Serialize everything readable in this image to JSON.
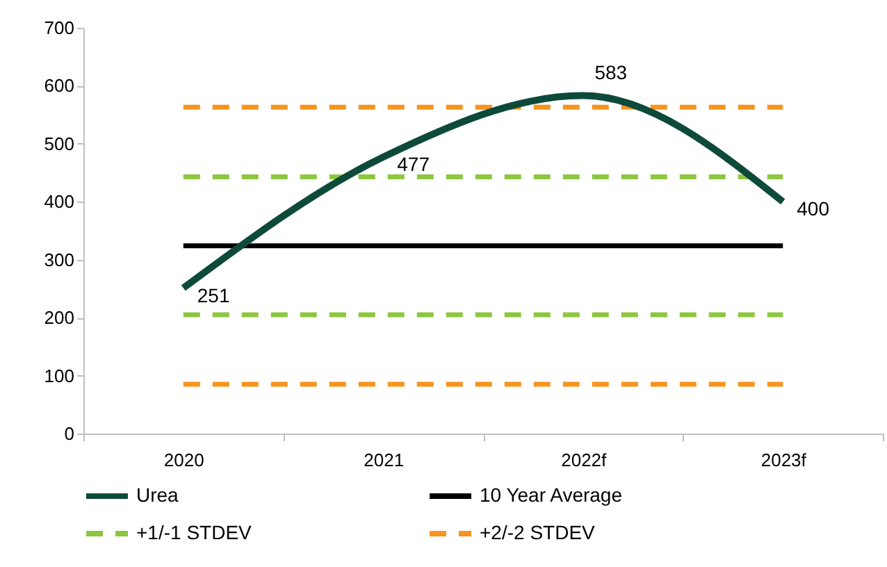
{
  "chart_data": {
    "type": "line",
    "categories": [
      "2020",
      "2021",
      "2022f",
      "2023f"
    ],
    "ylim": [
      0,
      700
    ],
    "yticks": [
      0,
      100,
      200,
      300,
      400,
      500,
      600,
      700
    ],
    "grid": false,
    "legend": "bottom",
    "marker": "none",
    "series": [
      {
        "name": "Urea",
        "color": "#0e4a3a",
        "values": [
          251,
          477,
          583,
          400
        ],
        "value_labels": [
          "251",
          "477",
          "583",
          "400"
        ]
      },
      {
        "name": "10 Year Average",
        "color": "#000000",
        "values": [
          324,
          324,
          324,
          324
        ],
        "line_style": "solid"
      },
      {
        "name": "+1/-1 STDEV",
        "color": "#8dc63f",
        "values": [
          443,
          443,
          443,
          443
        ],
        "line_style": "dashed"
      },
      {
        "color": "#8dc63f",
        "values": [
          205,
          205,
          205,
          205
        ],
        "line_style": "dashed"
      },
      {
        "name": "+2/-2 STDEV",
        "color": "#f7941d",
        "values": [
          563,
          563,
          563,
          563
        ],
        "line_style": "dashed"
      },
      {
        "color": "#f7941d",
        "values": [
          85,
          85,
          85,
          85
        ],
        "line_style": "dashed"
      }
    ]
  }
}
